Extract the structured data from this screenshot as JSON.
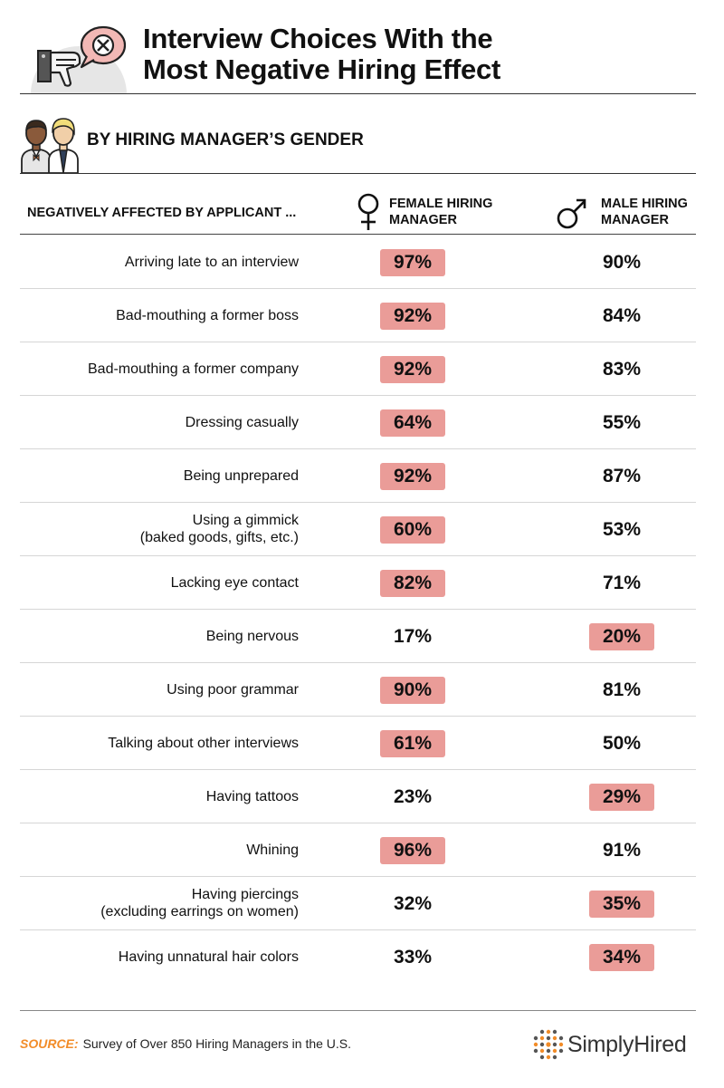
{
  "header": {
    "title_line1": "Interview Choices With the",
    "title_line2": "Most Negative Hiring Effect",
    "subtitle": "BY HIRING MANAGER’S GENDER"
  },
  "columns": {
    "label": "NEGATIVELY AFFECTED BY APPLICANT ...",
    "female_line1": "FEMALE HIRING",
    "female_line2": "MANAGER",
    "male_line1": "MALE HIRING",
    "male_line2": "MANAGER"
  },
  "highlight_color": "#ea9c98",
  "chart_data": {
    "type": "table",
    "columns": [
      "NEGATIVELY AFFECTED BY APPLICANT ...",
      "FEMALE HIRING MANAGER",
      "MALE HIRING MANAGER"
    ],
    "rows": [
      {
        "label1": "Arriving late to an interview",
        "label2": "",
        "female": "97%",
        "male": "90%",
        "highlight": "female"
      },
      {
        "label1": "Bad-mouthing a former boss",
        "label2": "",
        "female": "92%",
        "male": "84%",
        "highlight": "female"
      },
      {
        "label1": "Bad-mouthing a former company",
        "label2": "",
        "female": "92%",
        "male": "83%",
        "highlight": "female"
      },
      {
        "label1": "Dressing casually",
        "label2": "",
        "female": "64%",
        "male": "55%",
        "highlight": "female"
      },
      {
        "label1": "Being unprepared",
        "label2": "",
        "female": "92%",
        "male": "87%",
        "highlight": "female"
      },
      {
        "label1": "Using a gimmick",
        "label2": "(baked goods, gifts, etc.)",
        "female": "60%",
        "male": "53%",
        "highlight": "female"
      },
      {
        "label1": "Lacking eye contact",
        "label2": "",
        "female": "82%",
        "male": "71%",
        "highlight": "female"
      },
      {
        "label1": "Being nervous",
        "label2": "",
        "female": "17%",
        "male": "20%",
        "highlight": "male"
      },
      {
        "label1": "Using poor grammar",
        "label2": "",
        "female": "90%",
        "male": "81%",
        "highlight": "female"
      },
      {
        "label1": "Talking about other interviews",
        "label2": "",
        "female": "61%",
        "male": "50%",
        "highlight": "female"
      },
      {
        "label1": "Having tattoos",
        "label2": "",
        "female": "23%",
        "male": "29%",
        "highlight": "male"
      },
      {
        "label1": "Whining",
        "label2": "",
        "female": "96%",
        "male": "91%",
        "highlight": "female"
      },
      {
        "label1": "Having piercings",
        "label2": "(excluding earrings on women)",
        "female": "32%",
        "male": "35%",
        "highlight": "male"
      },
      {
        "label1": "Having unnatural hair colors",
        "label2": "",
        "female": "33%",
        "male": "34%",
        "highlight": "male"
      }
    ]
  },
  "footer": {
    "source_key": "SOURCE:",
    "source_text": "Survey of Over 850 Hiring Managers in the U.S.",
    "brand": "SimplyHired"
  }
}
